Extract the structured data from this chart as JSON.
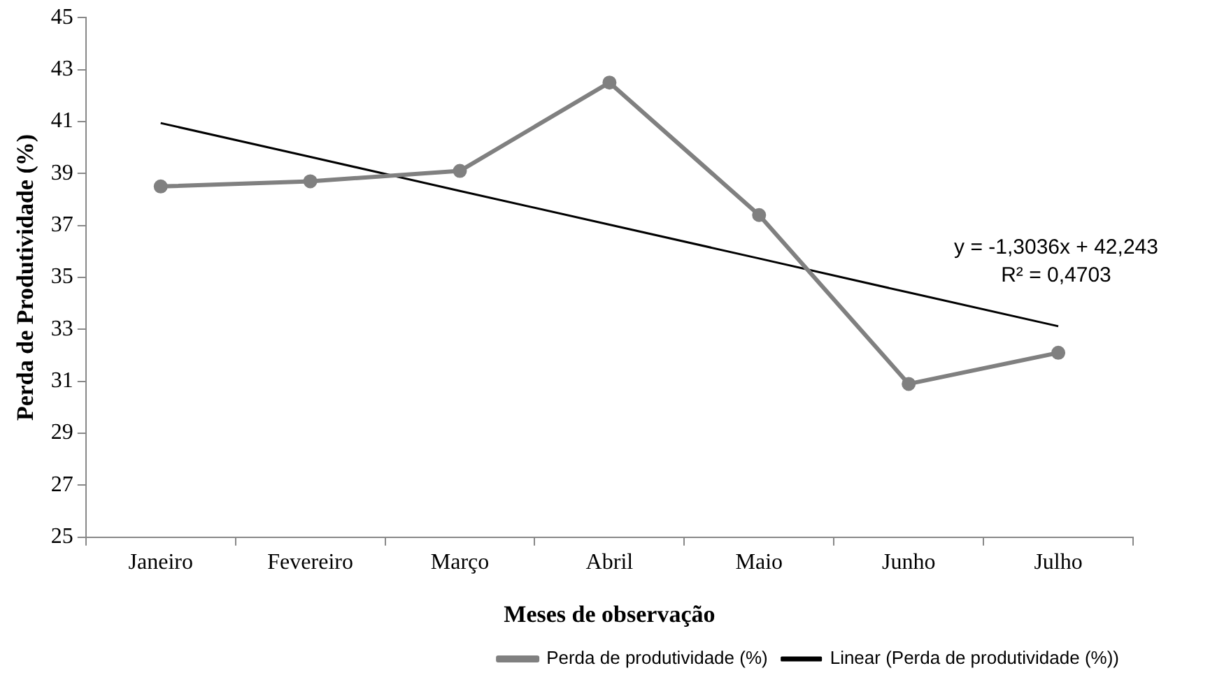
{
  "chart_data": {
    "type": "line",
    "xlabel": "Meses de observação",
    "ylabel": "Perda de Produtividade (%)",
    "categories": [
      "Janeiro",
      "Fevereiro",
      "Março",
      "Abril",
      "Maio",
      "Junho",
      "Julho"
    ],
    "series": [
      {
        "name": "Perda de produtividade (%)",
        "color": "#808080",
        "marker": "circle",
        "values": [
          38.5,
          38.7,
          39.1,
          42.5,
          37.4,
          30.9,
          32.1
        ]
      },
      {
        "name": "Linear (Perda de produtividade (%))",
        "color": "#000000",
        "marker": "none",
        "values": [
          40.94,
          39.64,
          38.33,
          37.03,
          35.73,
          34.42,
          33.12
        ]
      }
    ],
    "ylim": [
      25,
      45
    ],
    "yticks": [
      25,
      27,
      29,
      31,
      33,
      35,
      37,
      39,
      41,
      43,
      45
    ],
    "grid": false,
    "legend": "bottom right",
    "line_style": "solid",
    "annotations": [
      "y = -1,3036x + 42,243",
      "R² = 0,4703"
    ]
  }
}
